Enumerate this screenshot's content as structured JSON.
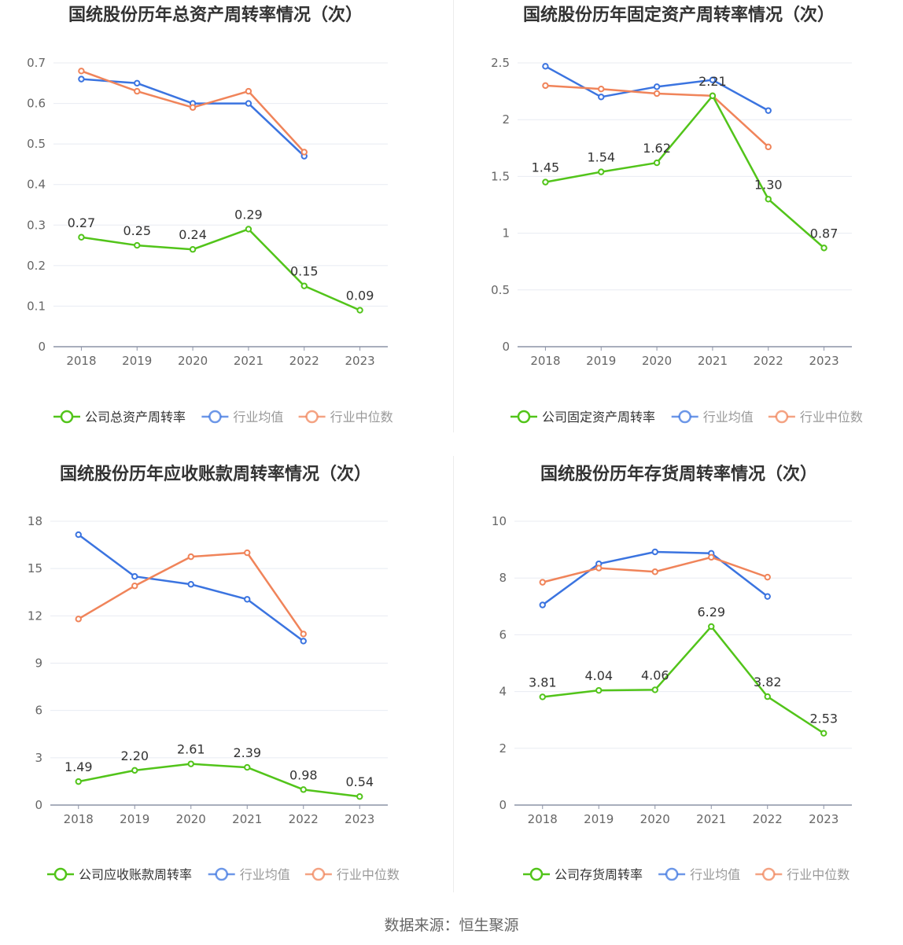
{
  "source": "数据来源：恒生聚源",
  "colors": {
    "company": "#52c41a",
    "avg": "#3b74e0",
    "median": "#f0845a",
    "grid": "#e8ebf2",
    "axis": "#8c93a6"
  },
  "chart_data": [
    {
      "type": "line",
      "title": "国统股份历年总资产周转率情况（次）",
      "categories": [
        "2018",
        "2019",
        "2020",
        "2021",
        "2022",
        "2023"
      ],
      "ylim": [
        0,
        0.7
      ],
      "yticks": [
        "0",
        "0.1",
        "0.2",
        "0.3",
        "0.4",
        "0.5",
        "0.6",
        "0.7"
      ],
      "grid": true,
      "legend_position": "bottom",
      "series": [
        {
          "name": "公司总资产周转率",
          "key": "company",
          "values": [
            0.27,
            0.25,
            0.24,
            0.29,
            0.15,
            0.09
          ],
          "labels": [
            "0.27",
            "0.25",
            "0.24",
            "0.29",
            "0.15",
            "0.09"
          ]
        },
        {
          "name": "行业均值",
          "key": "avg",
          "values": [
            0.66,
            0.65,
            0.6,
            0.6,
            0.47,
            null
          ]
        },
        {
          "name": "行业中位数",
          "key": "median",
          "values": [
            0.68,
            0.63,
            0.59,
            0.63,
            0.48,
            null
          ]
        }
      ]
    },
    {
      "type": "line",
      "title": "国统股份历年固定资产周转率情况（次）",
      "categories": [
        "2018",
        "2019",
        "2020",
        "2021",
        "2022",
        "2023"
      ],
      "ylim": [
        0,
        2.5
      ],
      "yticks": [
        "0",
        "0.5",
        "1",
        "1.5",
        "2",
        "2.5"
      ],
      "grid": true,
      "legend_position": "bottom",
      "series": [
        {
          "name": "公司固定资产周转率",
          "key": "company",
          "values": [
            1.45,
            1.54,
            1.62,
            2.21,
            1.3,
            0.87
          ],
          "labels": [
            "1.45",
            "1.54",
            "1.62",
            "2.21",
            "1.30",
            "0.87"
          ]
        },
        {
          "name": "行业均值",
          "key": "avg",
          "values": [
            2.47,
            2.2,
            2.29,
            2.35,
            2.08,
            null
          ]
        },
        {
          "name": "行业中位数",
          "key": "median",
          "values": [
            2.3,
            2.27,
            2.23,
            2.21,
            1.76,
            null
          ]
        }
      ]
    },
    {
      "type": "line",
      "title": "国统股份历年应收账款周转率情况（次）",
      "categories": [
        "2018",
        "2019",
        "2020",
        "2021",
        "2022",
        "2023"
      ],
      "ylim": [
        0,
        18
      ],
      "yticks": [
        "0",
        "3",
        "6",
        "9",
        "12",
        "15",
        "18"
      ],
      "grid": true,
      "legend_position": "bottom",
      "series": [
        {
          "name": "公司应收账款周转率",
          "key": "company",
          "values": [
            1.49,
            2.2,
            2.61,
            2.39,
            0.98,
            0.54
          ],
          "labels": [
            "1.49",
            "2.20",
            "2.61",
            "2.39",
            "0.98",
            "0.54"
          ]
        },
        {
          "name": "行业均值",
          "key": "avg",
          "values": [
            17.15,
            14.5,
            14.0,
            13.05,
            10.4,
            null
          ]
        },
        {
          "name": "行业中位数",
          "key": "median",
          "values": [
            11.8,
            13.9,
            15.75,
            16.0,
            10.85,
            null
          ]
        }
      ]
    },
    {
      "type": "line",
      "title": "国统股份历年存货周转率情况（次）",
      "categories": [
        "2018",
        "2019",
        "2020",
        "2021",
        "2022",
        "2023"
      ],
      "ylim": [
        0,
        10
      ],
      "yticks": [
        "0",
        "2",
        "4",
        "6",
        "8",
        "10"
      ],
      "grid": true,
      "legend_position": "bottom",
      "series": [
        {
          "name": "公司存货周转率",
          "key": "company",
          "values": [
            3.81,
            4.04,
            4.06,
            6.29,
            3.82,
            2.53
          ],
          "labels": [
            "3.81",
            "4.04",
            "4.06",
            "6.29",
            "3.82",
            "2.53"
          ]
        },
        {
          "name": "行业均值",
          "key": "avg",
          "values": [
            7.05,
            8.5,
            8.92,
            8.87,
            7.35,
            null
          ]
        },
        {
          "name": "行业中位数",
          "key": "median",
          "values": [
            7.85,
            8.35,
            8.22,
            8.73,
            8.03,
            null
          ]
        }
      ]
    }
  ]
}
